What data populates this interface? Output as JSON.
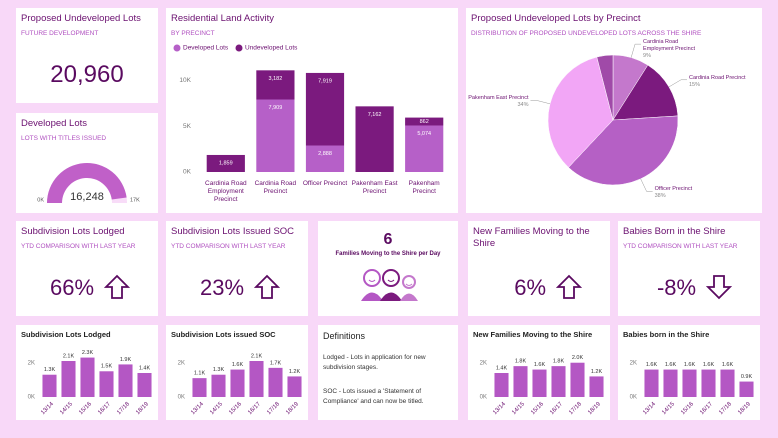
{
  "kpis": [
    {
      "title": "Proposed Undeveloped Lots",
      "subtitle": "FUTURE DEVELOPMENT",
      "value": "20,960"
    },
    {
      "title": "Subdivision Lots Lodged",
      "subtitle": "YTD COMPARISON WITH LAST YEAR",
      "value": "66%",
      "trend": "up"
    },
    {
      "title": "Subdivision Lots Issued SOC",
      "subtitle": "YTD COMPARISON WITH LAST YEAR",
      "value": "23%",
      "trend": "up"
    },
    {
      "title": "New Families Moving to the Shire",
      "value": "6%",
      "trend": "up"
    },
    {
      "title": "Babies Born in the Shire",
      "subtitle": "YTD COMPARISON WITH LAST YEAR",
      "value": "-8%",
      "trend": "down"
    }
  ],
  "families_per_day": {
    "value": "6",
    "label": "Families Moving to the Shire per Day"
  },
  "definitions": {
    "title": "Definitions",
    "items": [
      "Lodged - Lots in application for new subdivision stages.",
      "SOC - Lots issued a 'Statement of Compliance' and can now be titled."
    ]
  },
  "chart_data": [
    {
      "type": "gauge",
      "title": "Developed Lots",
      "subtitle": "LOTS WITH TITLES ISSUED",
      "value": 16248,
      "value_label": "16,248",
      "min": {
        "value": 0,
        "label": "0K"
      },
      "max": {
        "value": 17000,
        "label": "17K"
      },
      "color": "#c060c8",
      "track_color": "#f8dcf8"
    },
    {
      "type": "stacked_bar",
      "title": "Residential Land Activity",
      "subtitle": "BY PRECINCT",
      "categories": [
        "Cardinia Road Employment Precinct",
        "Cardinia Road Precinct",
        "Officer Precinct",
        "Pakenham East Precinct",
        "Pakenham Precinct"
      ],
      "series": [
        {
          "name": "Developed Lots",
          "color": "#b660c8",
          "values": [
            null,
            7909,
            2888,
            null,
            5074
          ],
          "value_labels": [
            null,
            "7,909",
            "2,888",
            null,
            "5,074"
          ]
        },
        {
          "name": "Undeveloped Lots",
          "color": "#7b1a7e",
          "values": [
            1859,
            3182,
            7919,
            7162,
            862
          ],
          "value_labels": [
            "1,859",
            "3,182",
            "7,919",
            "7,162",
            "862"
          ]
        }
      ],
      "ylim": [
        0,
        12000
      ],
      "yticks": [
        {
          "value": 0,
          "label": "0K"
        },
        {
          "value": 5000,
          "label": "5K"
        },
        {
          "value": 10000,
          "label": "10K"
        }
      ],
      "grid": false
    },
    {
      "type": "pie",
      "title": "Proposed Undeveloped Lots by Precinct",
      "subtitle": "DISTRIBUTION OF PROPOSED UNDEVELOPED LOTS ACROSS THE SHIRE",
      "categories": [
        "Cardinia Road Employment Precinct",
        "Cardinia Road Precinct",
        "Officer Precinct",
        "Pakenham East Precinct",
        null
      ],
      "values": [
        9,
        15,
        38,
        34,
        4
      ],
      "value_labels": [
        "9%",
        "15%",
        "38%",
        "34%",
        null
      ],
      "colors": [
        "#c478cc",
        "#7b1a7e",
        "#b560c5",
        "#f2a6f6",
        "#a04aa8"
      ]
    },
    {
      "type": "bar",
      "title": "Subdivision Lots Lodged",
      "categories": [
        "13/14",
        "14/15",
        "15/16",
        "16/17",
        "17/18",
        "18/19"
      ],
      "values": [
        1300,
        2100,
        2300,
        1500,
        1900,
        1400
      ],
      "value_labels": [
        "1.3K",
        "2.1K",
        "2.3K",
        "1.5K",
        "1.9K",
        "1.4K"
      ],
      "color": "#b457c4",
      "ylim": [
        0,
        2800
      ],
      "yticks": [
        {
          "value": 0,
          "label": "0K"
        },
        {
          "value": 2000,
          "label": "2K"
        }
      ]
    },
    {
      "type": "bar",
      "title": "Subdivision Lots issued SOC",
      "categories": [
        "13/14",
        "14/15",
        "15/16",
        "16/17",
        "17/18",
        "18/19"
      ],
      "values": [
        1100,
        1300,
        1600,
        2100,
        1700,
        1200
      ],
      "value_labels": [
        "1.1K",
        "1.3K",
        "1.6K",
        "2.1K",
        "1.7K",
        "1.2K"
      ],
      "color": "#b457c4",
      "ylim": [
        0,
        2800
      ],
      "yticks": [
        {
          "value": 0,
          "label": "0K"
        },
        {
          "value": 2000,
          "label": "2K"
        }
      ]
    },
    {
      "type": "bar",
      "title": "New Families Moving to the Shire",
      "categories": [
        "13/14",
        "14/15",
        "15/16",
        "16/17",
        "17/18",
        "18/19"
      ],
      "values": [
        1400,
        1800,
        1600,
        1800,
        2000,
        1200
      ],
      "value_labels": [
        "1.4K",
        "1.8K",
        "1.6K",
        "1.8K",
        "2.0K",
        "1.2K"
      ],
      "color": "#b457c4",
      "ylim": [
        0,
        2800
      ],
      "yticks": [
        {
          "value": 0,
          "label": "0K"
        },
        {
          "value": 2000,
          "label": "2K"
        }
      ]
    },
    {
      "type": "bar",
      "title": "Babies born in the Shire",
      "categories": [
        "13/14",
        "14/15",
        "15/16",
        "16/17",
        "17/18",
        "18/19"
      ],
      "values": [
        1600,
        1600,
        1600,
        1600,
        1600,
        900
      ],
      "value_labels": [
        "1.6K",
        "1.6K",
        "1.6K",
        "1.6K",
        "1.6K",
        "0.9K"
      ],
      "color": "#b457c4",
      "ylim": [
        0,
        2800
      ],
      "yticks": [
        {
          "value": 0,
          "label": "0K"
        },
        {
          "value": 2000,
          "label": "2K"
        }
      ]
    }
  ]
}
